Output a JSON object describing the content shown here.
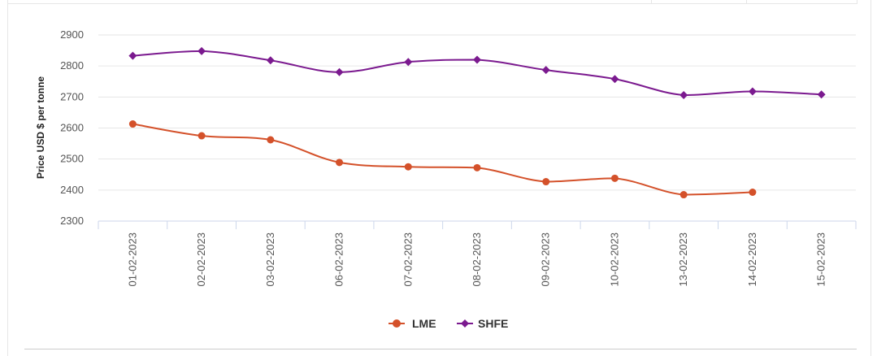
{
  "chart_data": {
    "type": "line",
    "title": "",
    "xlabel": "",
    "ylabel": "Price USD $ per tonne",
    "ylim": [
      2300,
      2900
    ],
    "yticks": [
      2300,
      2400,
      2500,
      2600,
      2700,
      2800,
      2900
    ],
    "grid": true,
    "legend_position": "bottom-center",
    "categories": [
      "01-02-2023",
      "02-02-2023",
      "03-02-2023",
      "06-02-2023",
      "07-02-2023",
      "08-02-2023",
      "09-02-2023",
      "10-02-2023",
      "13-02-2023",
      "14-02-2023",
      "15-02-2023"
    ],
    "series": [
      {
        "name": "LME",
        "color": "#d4512a",
        "marker": "circle",
        "values": [
          2613,
          2575,
          2562,
          2489,
          2475,
          2472,
          2427,
          2438,
          2385,
          2393,
          null
        ]
      },
      {
        "name": "SHFE",
        "color": "#7b1a8f",
        "marker": "diamond",
        "values": [
          2833,
          2848,
          2818,
          2780,
          2813,
          2820,
          2787,
          2758,
          2706,
          2718,
          2708
        ]
      }
    ]
  }
}
